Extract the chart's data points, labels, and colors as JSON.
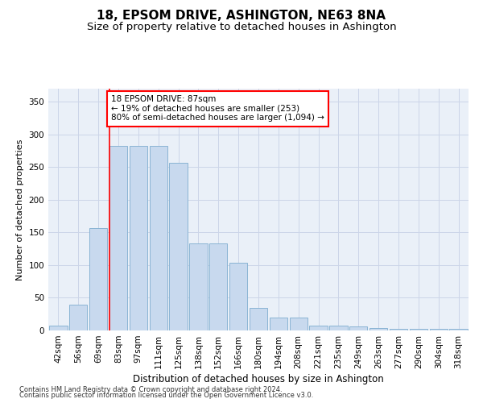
{
  "title": "18, EPSOM DRIVE, ASHINGTON, NE63 8NA",
  "subtitle": "Size of property relative to detached houses in Ashington",
  "xlabel": "Distribution of detached houses by size in Ashington",
  "ylabel": "Number of detached properties",
  "categories": [
    "42sqm",
    "56sqm",
    "69sqm",
    "83sqm",
    "97sqm",
    "111sqm",
    "125sqm",
    "138sqm",
    "152sqm",
    "166sqm",
    "180sqm",
    "194sqm",
    "208sqm",
    "221sqm",
    "235sqm",
    "249sqm",
    "263sqm",
    "277sqm",
    "290sqm",
    "304sqm",
    "318sqm"
  ],
  "values": [
    8,
    40,
    157,
    283,
    283,
    283,
    257,
    133,
    133,
    103,
    35,
    20,
    20,
    8,
    8,
    6,
    4,
    3,
    2,
    2,
    2
  ],
  "bar_color": "#c8d9ee",
  "bar_edge_color": "#8ab4d4",
  "red_line_index": 3,
  "annotation_text": "18 EPSOM DRIVE: 87sqm\n← 19% of detached houses are smaller (253)\n80% of semi-detached houses are larger (1,094) →",
  "annotation_box_color": "white",
  "annotation_box_edge_color": "red",
  "footer1": "Contains HM Land Registry data © Crown copyright and database right 2024.",
  "footer2": "Contains public sector information licensed under the Open Government Licence v3.0.",
  "ylim": [
    0,
    370
  ],
  "yticks": [
    0,
    50,
    100,
    150,
    200,
    250,
    300,
    350
  ],
  "grid_color": "#ccd5e8",
  "background_color": "#eaf0f8",
  "title_fontsize": 11,
  "subtitle_fontsize": 9.5,
  "xlabel_fontsize": 8.5,
  "ylabel_fontsize": 8,
  "tick_fontsize": 7.5,
  "annotation_fontsize": 7.5,
  "footer_fontsize": 6
}
